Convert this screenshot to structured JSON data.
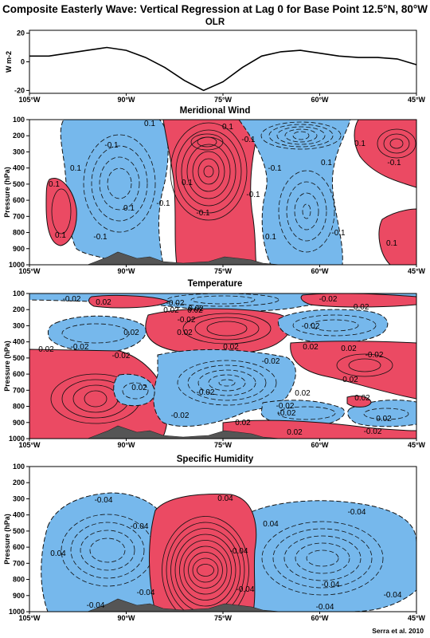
{
  "figure_title": "Composite Easterly Wave: Vertical Regression at Lag 0 for Base Point 12.5°N, 80°W",
  "credit": "Serra et al. 2010",
  "colors": {
    "positive": "#eb4a63",
    "negative": "#76b8ec",
    "terrain": "#555555"
  },
  "panels": {
    "olr": {
      "title": "OLR",
      "ylabel": "W m-2",
      "yticks": [
        "20",
        "0",
        "-20"
      ]
    },
    "meridional_wind": {
      "title": "Meridional Wind",
      "ylabel": "Pressure (hPa)"
    },
    "temperature": {
      "title": "Temperature",
      "ylabel": "Pressure (hPa)"
    },
    "specific_humidity": {
      "title": "Specific Humidity",
      "ylabel": "Pressure (hPa)"
    }
  },
  "lon_ticks": [
    "105°W",
    "90°W",
    "75°W",
    "60°W",
    "45°W"
  ],
  "pressure_ticks": [
    "100",
    "200",
    "300",
    "400",
    "500",
    "600",
    "700",
    "800",
    "900",
    "1000"
  ],
  "contour_labels": {
    "wind": [
      "0.1",
      "0.1",
      "-0.1",
      "-0.1",
      "0.1",
      "-0.1",
      "0.1",
      "-0.1",
      "0.1",
      "0.1",
      "0.1",
      "-0.1",
      "-0.1",
      "-0.1",
      "0.1",
      "0.1",
      "-0.1",
      "0.1",
      "-0.1",
      "0.1"
    ],
    "temperature": [
      "-0.02",
      "0.02",
      "-0.02",
      "0.02",
      "-0.02",
      "-0.02",
      "0.02",
      "-0.02",
      "0.02",
      "0.02",
      "-0.02",
      "0.02",
      "-0.02",
      "0.02",
      "-0.02",
      "0.02",
      "0.02",
      "-0.02",
      "0.02",
      "-0.02",
      "0.02",
      "-0.02",
      "0.02",
      "0.02",
      "-0.02",
      "0.02",
      "-0.02",
      "0.02",
      "-0.02",
      "0.02",
      "-0.02",
      "0.02"
    ],
    "humidity": [
      "-0.04",
      "0.04",
      "-0.04",
      "-0.04",
      "0.04",
      "-0.04",
      "0.04",
      "-0.04",
      "-0.04",
      "-0.04",
      "-0.04",
      "-0.04",
      "-0.04"
    ]
  },
  "chart_data": [
    {
      "type": "line",
      "title": "OLR",
      "xlabel": "",
      "ylabel": "W m-2",
      "x": [
        -105,
        -102,
        -99,
        -96,
        -93,
        -90,
        -87,
        -84,
        -81,
        -78,
        -75,
        -72,
        -69,
        -66,
        -63,
        -60,
        -57,
        -54,
        -51,
        -48,
        -45
      ],
      "y": [
        4,
        4,
        6,
        8,
        10,
        8,
        3,
        -4,
        -13,
        -20,
        -14,
        -4,
        4,
        7,
        8,
        6,
        4,
        3,
        3,
        2,
        -2
      ],
      "xlim": [
        -105,
        -45
      ],
      "ylim": [
        -22,
        22
      ]
    },
    {
      "type": "heatmap",
      "title": "Meridional Wind",
      "ylabel": "Pressure (hPa)",
      "xlim": [
        -105,
        -45
      ],
      "ylim": [
        1000,
        100
      ],
      "contour_interval": 0.1,
      "positive_color": "#eb4a63",
      "negative_color": "#76b8ec"
    },
    {
      "type": "heatmap",
      "title": "Temperature",
      "ylabel": "Pressure (hPa)",
      "xlim": [
        -105,
        -45
      ],
      "ylim": [
        1000,
        100
      ],
      "contour_interval": 0.02,
      "positive_color": "#eb4a63",
      "negative_color": "#76b8ec"
    },
    {
      "type": "heatmap",
      "title": "Specific Humidity",
      "ylabel": "Pressure (hPa)",
      "xlim": [
        -105,
        -45
      ],
      "ylim": [
        1000,
        100
      ],
      "contour_interval": 0.04,
      "positive_color": "#eb4a63",
      "negative_color": "#76b8ec"
    }
  ]
}
